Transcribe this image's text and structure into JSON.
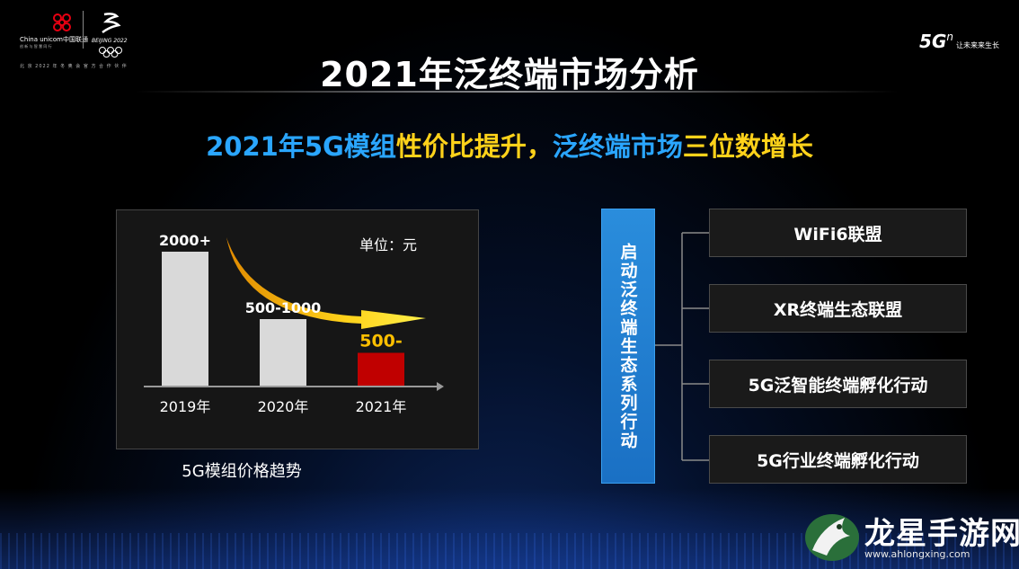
{
  "logos": {
    "unicom_name": "China unicom中国联通",
    "unicom_slogan": "创 新 与 智 慧 同 行",
    "beijing_mark": "BEIJING 2022",
    "partner_text": "北 京 2022 年 冬 奥 会 官 方 合 作 伙 伴",
    "g5_main": "5G",
    "g5_sup": "n",
    "g5_tagline": "让未来来生长"
  },
  "title": "2021年泛终端市场分析",
  "subtitle": {
    "part1": "2021年5G模组",
    "part2": "性价比提升，",
    "part3": "泛终端市场",
    "part4": "三位数增长"
  },
  "chart_data": {
    "type": "bar",
    "categories": [
      "2019年",
      "2020年",
      "2021年"
    ],
    "values": [
      2000,
      1000,
      500
    ],
    "data_labels": [
      "2000+",
      "500-1000",
      "500-"
    ],
    "unit_label": "单位：元",
    "caption": "5G模组价格趋势",
    "bar_colors": [
      "#d9d9d9",
      "#d9d9d9",
      "#c00000"
    ],
    "label_colors": [
      "#ffffff",
      "#ffffff",
      "#ffc000"
    ],
    "ylim": [
      0,
      2000
    ]
  },
  "launch": {
    "label": "启动泛终端生态系列行动",
    "color": "#1f7fd0"
  },
  "actions": [
    "WiFi6联盟",
    "XR终端生态联盟",
    "5G泛智能终端孵化行动",
    "5G行业终端孵化行动"
  ],
  "watermark": {
    "name": "龙星手游网",
    "url": "www.ahlongxing.com"
  }
}
